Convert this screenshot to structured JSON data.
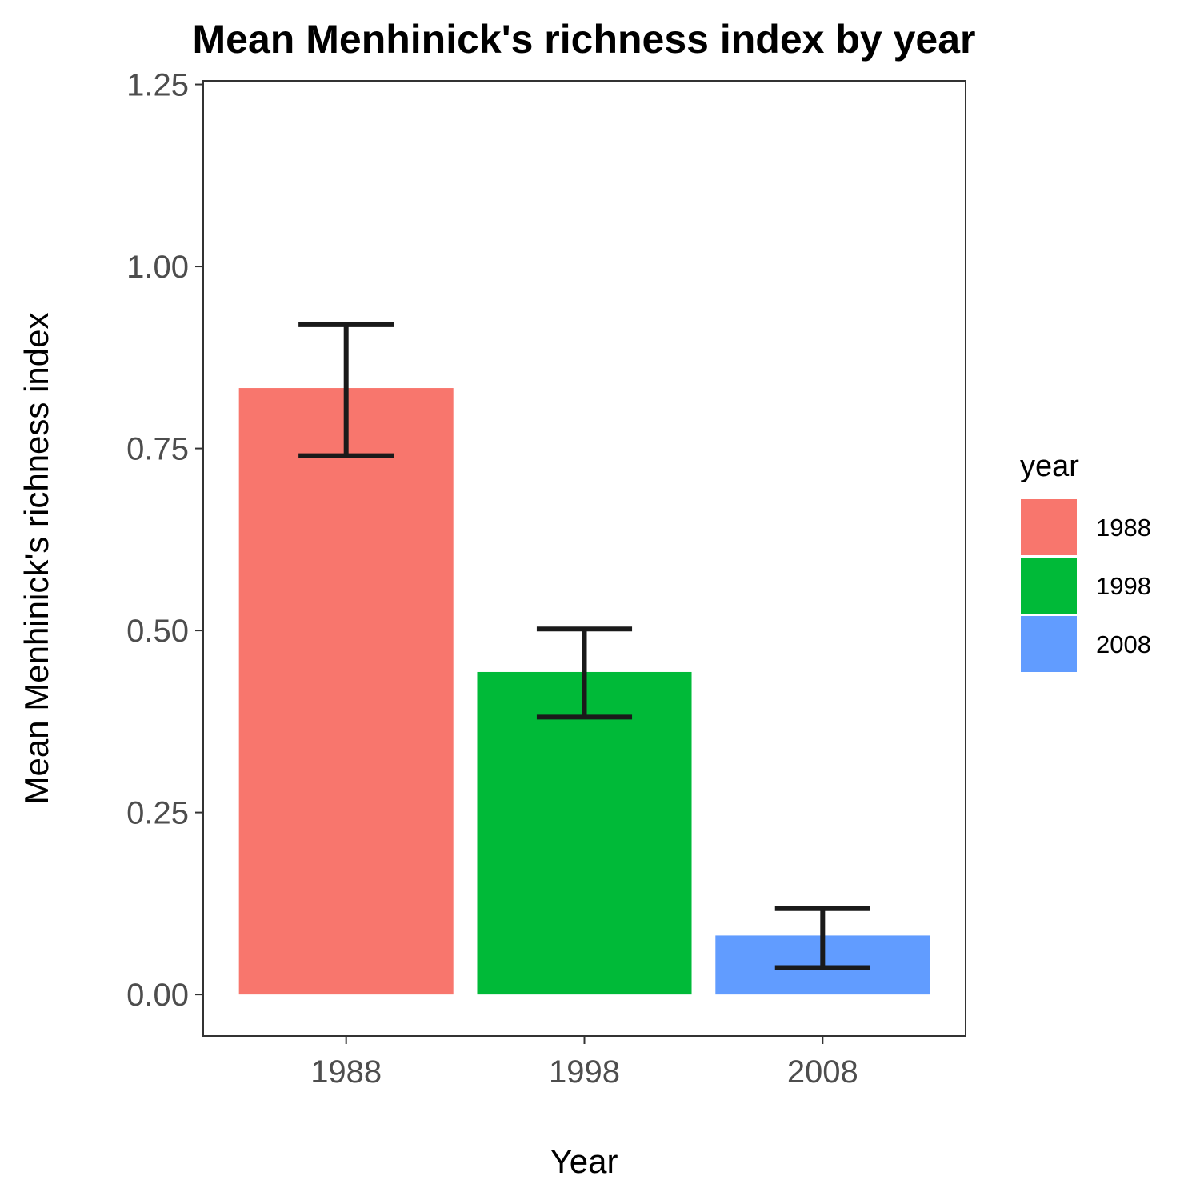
{
  "chart_data": {
    "type": "bar",
    "title": "Mean Menhinick's richness index by year",
    "xlabel": "Year",
    "ylabel": "Mean Menhinick's richness index",
    "categories": [
      "1988",
      "1998",
      "2008"
    ],
    "values": [
      0.833,
      0.443,
      0.081
    ],
    "error_low": [
      0.74,
      0.381,
      0.037
    ],
    "error_high": [
      0.92,
      0.502,
      0.118
    ],
    "colors": [
      "#F8766D",
      "#00BA38",
      "#619CFF"
    ],
    "ylim": [
      -0.057,
      1.255
    ],
    "yticks": [
      0,
      0.25,
      0.5,
      0.75,
      1.0,
      1.25
    ],
    "ytick_labels": [
      "0.00",
      "0.25",
      "0.50",
      "0.75",
      "1.00",
      "1.25"
    ],
    "grid": false,
    "legend": {
      "title": "year",
      "position": "right",
      "entries": [
        "1988",
        "1998",
        "2008"
      ]
    }
  }
}
